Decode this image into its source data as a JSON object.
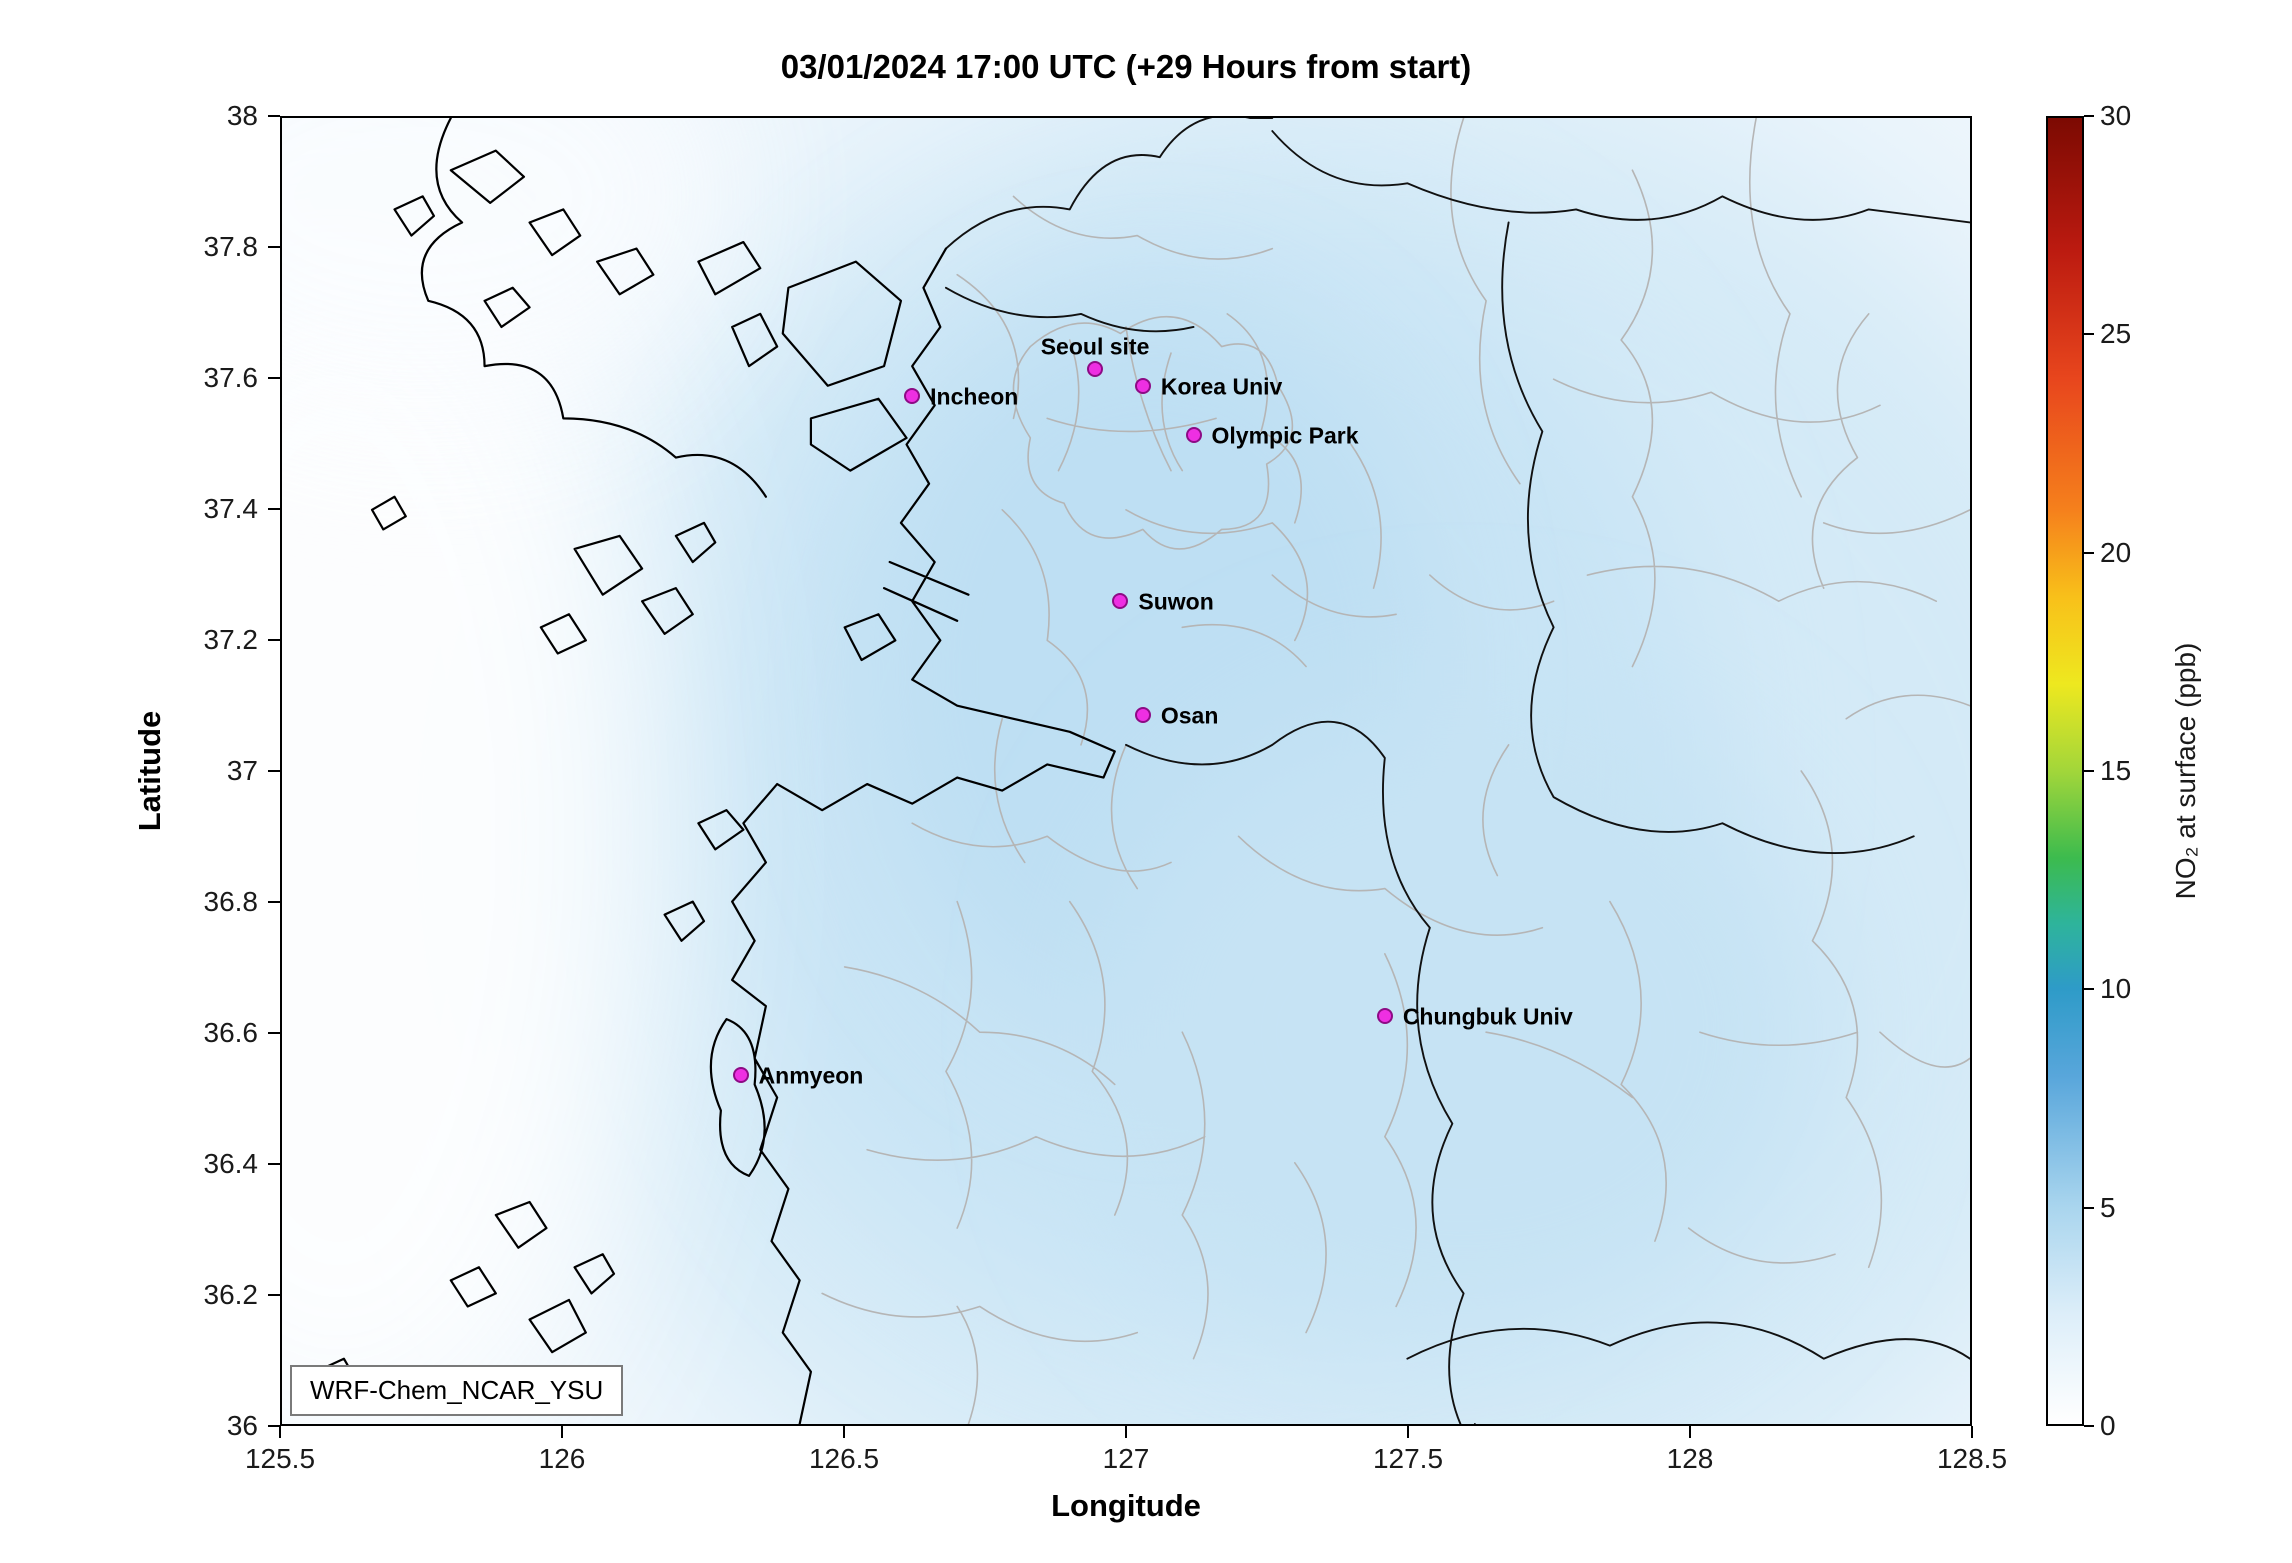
{
  "chart_data": {
    "type": "heatmap",
    "title": "03/01/2024 17:00 UTC (+29 Hours from start)",
    "xlabel": "Longitude",
    "ylabel": "Latitude",
    "xlim": [
      125.5,
      128.5
    ],
    "ylim": [
      36,
      38
    ],
    "grid": false,
    "x_ticks": {
      "values": [
        125.5,
        126,
        126.5,
        127,
        127.5,
        128,
        128.5
      ],
      "labels": [
        "125.5",
        "126",
        "126.5",
        "127",
        "127.5",
        "128",
        "128.5"
      ]
    },
    "y_ticks": {
      "values": [
        36,
        36.2,
        36.4,
        36.6,
        36.8,
        37,
        37.2,
        37.4,
        37.6,
        37.8,
        38
      ],
      "labels": [
        "36",
        "36.2",
        "36.4",
        "36.6",
        "36.8",
        "37",
        "37.2",
        "37.4",
        "37.6",
        "37.8",
        "38"
      ]
    },
    "colorbar": {
      "label": "NO₂ at surface (ppb)",
      "min": 0,
      "max": 30,
      "ticks": [
        0,
        5,
        10,
        15,
        20,
        25,
        30
      ],
      "tick_labels": [
        "0",
        "5",
        "10",
        "15",
        "20",
        "25",
        "30"
      ],
      "colormap_stops": [
        {
          "value": 0,
          "color": "#ffffff"
        },
        {
          "value": 2.5,
          "color": "#ddeef9"
        },
        {
          "value": 5,
          "color": "#a9d5ee"
        },
        {
          "value": 8,
          "color": "#58a6db"
        },
        {
          "value": 10,
          "color": "#2e9bc8"
        },
        {
          "value": 11.5,
          "color": "#2eb49b"
        },
        {
          "value": 13,
          "color": "#3cbb4e"
        },
        {
          "value": 15,
          "color": "#a2d63a"
        },
        {
          "value": 17,
          "color": "#eee81f"
        },
        {
          "value": 19,
          "color": "#f8c01a"
        },
        {
          "value": 21,
          "color": "#f5801c"
        },
        {
          "value": 24,
          "color": "#e8461d"
        },
        {
          "value": 27,
          "color": "#bb1a10"
        },
        {
          "value": 30,
          "color": "#7c0a02"
        }
      ]
    },
    "marker_color": "#ee2fe2",
    "stations": [
      {
        "name": "Incheon",
        "lon": 126.62,
        "lat": 37.575,
        "label_pos": "right"
      },
      {
        "name": "Seoul site",
        "lon": 126.945,
        "lat": 37.615,
        "label_pos": "above"
      },
      {
        "name": "Korea Univ",
        "lon": 127.03,
        "lat": 37.59,
        "label_pos": "right"
      },
      {
        "name": "Olympic Park",
        "lon": 127.12,
        "lat": 37.515,
        "label_pos": "right"
      },
      {
        "name": "Suwon",
        "lon": 126.99,
        "lat": 37.26,
        "label_pos": "right"
      },
      {
        "name": "Osan",
        "lon": 127.03,
        "lat": 37.085,
        "label_pos": "right"
      },
      {
        "name": "Chungbuk Univ",
        "lon": 127.46,
        "lat": 36.625,
        "label_pos": "right"
      },
      {
        "name": "Anmyeon",
        "lon": 126.315,
        "lat": 36.535,
        "label_pos": "right"
      }
    ],
    "annotation_box": "WRF-Chem_NCAR_YSU",
    "value_range_visible": [
      0,
      6
    ],
    "field_summary": "Modeled surface NO2 mostly 0-6 ppb: near-white (~0-1 ppb) over the Yellow Sea in the west, pale blue (~2-5 ppb) enhancement over central/inland Korea around Seoul-Suwon-Osan and Chungbuk, fading toward the northeast"
  }
}
